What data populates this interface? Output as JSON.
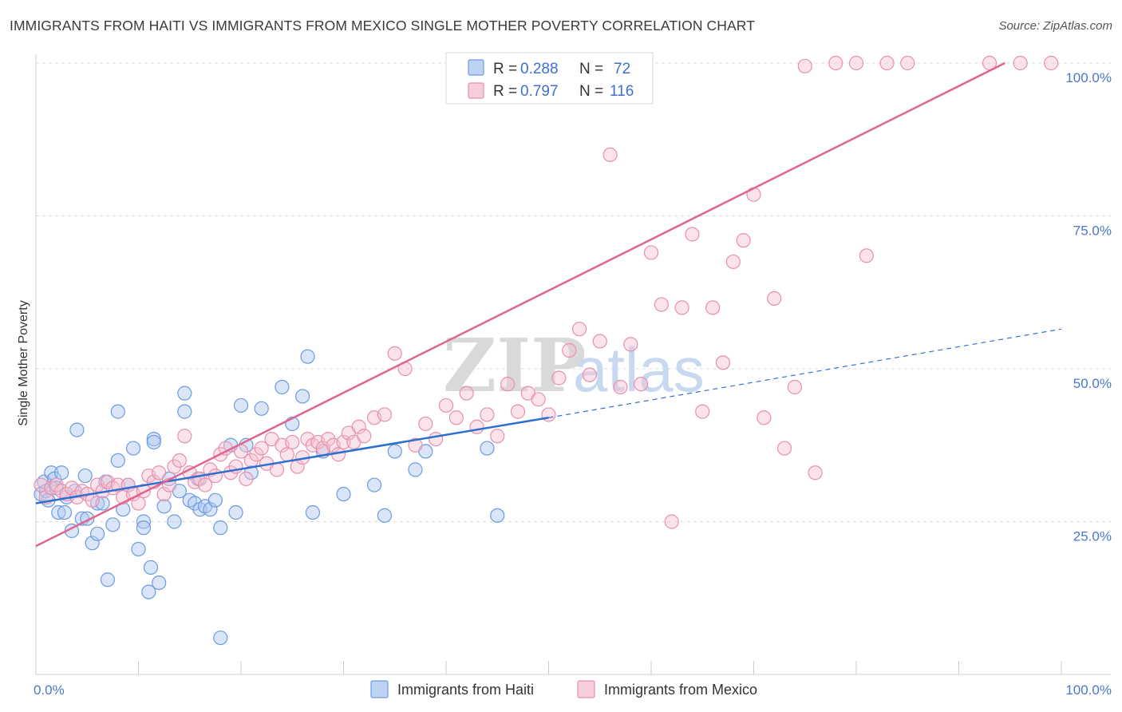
{
  "header": {
    "title": "IMMIGRANTS FROM HAITI VS IMMIGRANTS FROM MEXICO SINGLE MOTHER POVERTY CORRELATION CHART",
    "source": "Source: ZipAtlas.com"
  },
  "watermark": {
    "zip": "ZIP",
    "atlas": "atlas"
  },
  "colors": {
    "haiti_fill": "#aec8ef",
    "haiti_stroke": "#6b9be0",
    "haiti_line": "#2c6fd1",
    "mexico_fill": "#f5c0d0",
    "mexico_stroke": "#e890ac",
    "mexico_line": "#e0648e",
    "grid": "#dcdcdc",
    "tick_label": "#4a78c8"
  },
  "legend": {
    "r_label": "R =",
    "n_label": "N =",
    "items": [
      {
        "series": "haiti",
        "r": "0.288",
        "n": "72"
      },
      {
        "series": "mexico",
        "r": "0.797",
        "n": "116"
      }
    ]
  },
  "chart_data": {
    "type": "scatter",
    "ylabel": "Single Mother Poverty",
    "xlim": [
      0,
      100
    ],
    "ylim": [
      0,
      100
    ],
    "x_ticks": [
      "0.0%",
      "100.0%"
    ],
    "y_ticks": [
      {
        "value": 25,
        "label": "25.0%"
      },
      {
        "value": 50,
        "label": "50.0%"
      },
      {
        "value": 75,
        "label": "75.0%"
      },
      {
        "value": 100,
        "label": "100.0%"
      }
    ],
    "grid": true,
    "legend_position": "top-center",
    "series": [
      {
        "name": "Immigrants from Haiti",
        "key": "haiti",
        "r": 0.288,
        "n": 72,
        "trend": {
          "x0": 0,
          "y0": 28.0,
          "x1": 50,
          "y1": 42.0,
          "dash_to_x": 100,
          "dash_to_y": 56.5
        },
        "points": [
          [
            0.5,
            29.5
          ],
          [
            0.8,
            31.5
          ],
          [
            1.0,
            30.0
          ],
          [
            1.2,
            28.5
          ],
          [
            1.5,
            33.0
          ],
          [
            1.8,
            32.0
          ],
          [
            2.0,
            30.5
          ],
          [
            2.2,
            26.5
          ],
          [
            2.5,
            33.0
          ],
          [
            2.8,
            26.5
          ],
          [
            3.0,
            29.0
          ],
          [
            3.5,
            23.5
          ],
          [
            3.8,
            30.0
          ],
          [
            4.0,
            40.0
          ],
          [
            4.5,
            25.5
          ],
          [
            4.8,
            32.5
          ],
          [
            5.0,
            25.5
          ],
          [
            5.5,
            21.5
          ],
          [
            6.0,
            28.0
          ],
          [
            6.0,
            23.0
          ],
          [
            6.5,
            28.0
          ],
          [
            6.8,
            31.5
          ],
          [
            7.0,
            15.5
          ],
          [
            7.5,
            24.5
          ],
          [
            8.0,
            35.0
          ],
          [
            8.0,
            43.0
          ],
          [
            8.5,
            27.0
          ],
          [
            9.0,
            31.0
          ],
          [
            9.5,
            37.0
          ],
          [
            10.0,
            20.5
          ],
          [
            10.5,
            25.0
          ],
          [
            10.5,
            24.0
          ],
          [
            11.0,
            13.5
          ],
          [
            11.2,
            17.5
          ],
          [
            11.5,
            38.5
          ],
          [
            11.5,
            38.0
          ],
          [
            12.0,
            15.0
          ],
          [
            12.5,
            27.5
          ],
          [
            13.0,
            32.0
          ],
          [
            13.5,
            25.0
          ],
          [
            14.0,
            30.0
          ],
          [
            14.5,
            46.0
          ],
          [
            14.5,
            43.0
          ],
          [
            15.0,
            28.5
          ],
          [
            15.5,
            28.0
          ],
          [
            15.8,
            32.0
          ],
          [
            16.0,
            27.0
          ],
          [
            16.5,
            27.5
          ],
          [
            17.0,
            27.0
          ],
          [
            17.5,
            28.5
          ],
          [
            18.0,
            24.0
          ],
          [
            18.0,
            6.0
          ],
          [
            19.0,
            37.5
          ],
          [
            19.5,
            26.5
          ],
          [
            20.0,
            44.0
          ],
          [
            20.5,
            37.5
          ],
          [
            21.0,
            33.0
          ],
          [
            22.0,
            43.5
          ],
          [
            24.0,
            47.0
          ],
          [
            25.0,
            41.0
          ],
          [
            26.0,
            45.5
          ],
          [
            26.5,
            52.0
          ],
          [
            27.0,
            26.5
          ],
          [
            28.0,
            36.5
          ],
          [
            30.0,
            29.5
          ],
          [
            33.0,
            31.0
          ],
          [
            34.0,
            26.0
          ],
          [
            35.0,
            36.5
          ],
          [
            37.0,
            33.5
          ],
          [
            38.0,
            36.5
          ],
          [
            44.0,
            37.0
          ],
          [
            45.0,
            26.0
          ]
        ]
      },
      {
        "name": "Immigrants from Mexico",
        "key": "mexico",
        "r": 0.797,
        "n": 116,
        "trend": {
          "x0": 0,
          "y0": 21.0,
          "x1": 94.5,
          "y1": 100.0
        },
        "points": [
          [
            0.5,
            31.0
          ],
          [
            1.0,
            29.0
          ],
          [
            1.5,
            30.5
          ],
          [
            2.0,
            31.0
          ],
          [
            2.5,
            30.0
          ],
          [
            3.0,
            29.5
          ],
          [
            3.5,
            30.5
          ],
          [
            4.0,
            29.0
          ],
          [
            4.5,
            30.0
          ],
          [
            5.0,
            29.5
          ],
          [
            5.5,
            28.5
          ],
          [
            6.0,
            31.0
          ],
          [
            6.5,
            30.0
          ],
          [
            7.0,
            31.5
          ],
          [
            7.5,
            30.5
          ],
          [
            8.0,
            31.0
          ],
          [
            8.5,
            29.0
          ],
          [
            9.0,
            31.0
          ],
          [
            9.5,
            29.5
          ],
          [
            10.0,
            28.0
          ],
          [
            10.5,
            30.0
          ],
          [
            11.0,
            32.5
          ],
          [
            11.5,
            31.5
          ],
          [
            12.0,
            33.0
          ],
          [
            12.5,
            29.5
          ],
          [
            13.0,
            31.0
          ],
          [
            13.5,
            34.0
          ],
          [
            14.0,
            35.0
          ],
          [
            14.5,
            39.0
          ],
          [
            15.0,
            33.0
          ],
          [
            15.5,
            31.5
          ],
          [
            16.0,
            32.0
          ],
          [
            16.5,
            31.0
          ],
          [
            17.0,
            33.5
          ],
          [
            17.5,
            32.5
          ],
          [
            18.0,
            36.0
          ],
          [
            18.5,
            37.0
          ],
          [
            19.0,
            33.0
          ],
          [
            19.5,
            34.0
          ],
          [
            20.0,
            36.5
          ],
          [
            20.5,
            32.0
          ],
          [
            21.0,
            35.0
          ],
          [
            21.5,
            36.0
          ],
          [
            22.0,
            37.0
          ],
          [
            22.5,
            34.5
          ],
          [
            23.0,
            38.5
          ],
          [
            23.5,
            33.5
          ],
          [
            24.0,
            37.5
          ],
          [
            24.5,
            36.0
          ],
          [
            25.0,
            38.0
          ],
          [
            25.5,
            34.0
          ],
          [
            26.0,
            35.5
          ],
          [
            26.5,
            38.5
          ],
          [
            27.0,
            37.5
          ],
          [
            27.5,
            38.0
          ],
          [
            28.0,
            37.0
          ],
          [
            28.5,
            38.5
          ],
          [
            29.0,
            37.5
          ],
          [
            29.5,
            36.0
          ],
          [
            30.0,
            38.0
          ],
          [
            30.5,
            39.5
          ],
          [
            31.0,
            38.0
          ],
          [
            31.5,
            40.5
          ],
          [
            32.0,
            39.0
          ],
          [
            33.0,
            42.0
          ],
          [
            34.0,
            42.5
          ],
          [
            35.0,
            52.5
          ],
          [
            36.0,
            50.0
          ],
          [
            37.0,
            37.5
          ],
          [
            38.0,
            41.0
          ],
          [
            39.0,
            38.5
          ],
          [
            40.0,
            44.0
          ],
          [
            41.0,
            42.0
          ],
          [
            42.0,
            46.0
          ],
          [
            43.0,
            40.5
          ],
          [
            44.0,
            42.5
          ],
          [
            45.0,
            39.0
          ],
          [
            46.0,
            47.5
          ],
          [
            47.0,
            43.0
          ],
          [
            48.0,
            46.0
          ],
          [
            49.0,
            45.0
          ],
          [
            50.0,
            42.5
          ],
          [
            51.0,
            48.5
          ],
          [
            52.0,
            53.0
          ],
          [
            53.0,
            56.5
          ],
          [
            54.0,
            49.0
          ],
          [
            55.0,
            54.5
          ],
          [
            56.0,
            85.0
          ],
          [
            57.0,
            47.0
          ],
          [
            58.0,
            54.0
          ],
          [
            59.0,
            47.5
          ],
          [
            60.0,
            69.0
          ],
          [
            61.0,
            60.5
          ],
          [
            62.0,
            25.0
          ],
          [
            63.0,
            60.0
          ],
          [
            64.0,
            72.0
          ],
          [
            65.0,
            43.0
          ],
          [
            66.0,
            60.0
          ],
          [
            67.0,
            51.0
          ],
          [
            68.0,
            67.5
          ],
          [
            69.0,
            71.0
          ],
          [
            70.0,
            78.5
          ],
          [
            71.0,
            42.0
          ],
          [
            72.0,
            61.5
          ],
          [
            73.0,
            37.0
          ],
          [
            74.0,
            47.0
          ],
          [
            75.0,
            99.5
          ],
          [
            76.0,
            33.0
          ],
          [
            78.0,
            100.0
          ],
          [
            80.0,
            100.0
          ],
          [
            81.0,
            68.5
          ],
          [
            83.0,
            100.0
          ],
          [
            85.0,
            100.0
          ],
          [
            93.0,
            100.0
          ],
          [
            96.0,
            100.0
          ],
          [
            99.0,
            100.0
          ]
        ]
      }
    ]
  },
  "bottom_legend": {
    "items": [
      {
        "series": "haiti",
        "label": "Immigrants from Haiti"
      },
      {
        "series": "mexico",
        "label": "Immigrants from Mexico"
      }
    ]
  }
}
